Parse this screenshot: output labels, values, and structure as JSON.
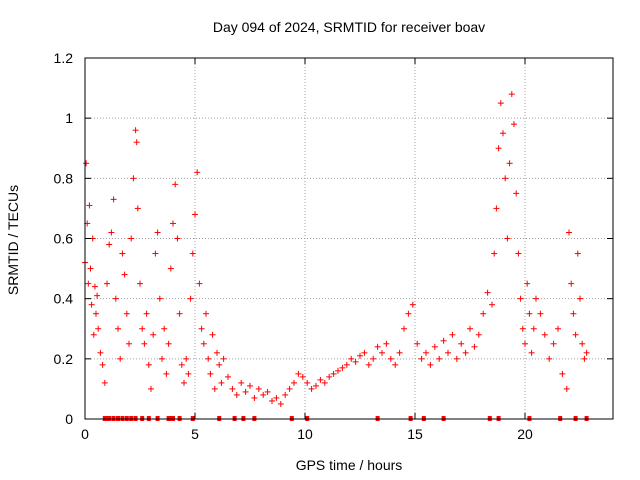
{
  "chart_data": {
    "type": "scatter",
    "title": "Day 094 of 2024, SRMTID for receiver boav",
    "xlabel": "GPS time / hours",
    "ylabel": "SRMTID / TECUs",
    "xlim": [
      0,
      24
    ],
    "ylim": [
      0,
      1.2
    ],
    "xticks": [
      0,
      5,
      10,
      15,
      20
    ],
    "xtick_labels": [
      "0",
      "5",
      "10",
      "15",
      "20"
    ],
    "yticks": [
      0,
      0.2,
      0.4,
      0.6,
      0.8,
      1.0,
      1.2
    ],
    "ytick_labels": [
      "0",
      "0.2",
      "0.4",
      "0.6",
      "0.8",
      "1",
      "1.2"
    ],
    "grid": true,
    "marker": "+",
    "color": "#ff0000",
    "series": [
      {
        "name": "SRMTID",
        "x": [
          0.0,
          0.05,
          0.1,
          0.15,
          0.2,
          0.25,
          0.3,
          0.35,
          0.4,
          0.45,
          0.5,
          0.55,
          0.6,
          0.7,
          0.8,
          0.9,
          1.0,
          1.1,
          1.2,
          1.3,
          1.4,
          1.5,
          1.6,
          1.7,
          1.8,
          1.9,
          2.0,
          2.1,
          2.2,
          2.3,
          2.35,
          2.4,
          2.5,
          2.6,
          2.7,
          2.8,
          2.9,
          3.0,
          3.1,
          3.2,
          3.3,
          3.4,
          3.5,
          3.6,
          3.7,
          3.8,
          3.9,
          4.0,
          4.1,
          4.2,
          4.3,
          4.4,
          4.5,
          4.6,
          4.7,
          4.8,
          4.9,
          5.0,
          5.1,
          5.2,
          5.3,
          5.4,
          5.5,
          5.6,
          5.7,
          5.8,
          5.9,
          6.0,
          6.1,
          6.2,
          6.3,
          6.5,
          6.7,
          6.9,
          7.1,
          7.3,
          7.5,
          7.7,
          7.9,
          8.1,
          8.3,
          8.5,
          8.7,
          8.9,
          9.1,
          9.3,
          9.5,
          9.7,
          9.9,
          10.1,
          10.3,
          10.5,
          10.7,
          10.9,
          11.1,
          11.3,
          11.5,
          11.7,
          11.9,
          12.1,
          12.3,
          12.5,
          12.7,
          12.9,
          13.1,
          13.3,
          13.5,
          13.7,
          13.9,
          14.1,
          14.3,
          14.5,
          14.7,
          14.9,
          15.1,
          15.3,
          15.5,
          15.7,
          15.9,
          16.1,
          16.3,
          16.5,
          16.7,
          16.9,
          17.1,
          17.3,
          17.5,
          17.7,
          17.9,
          18.1,
          18.3,
          18.5,
          18.6,
          18.7,
          18.8,
          18.9,
          19.0,
          19.1,
          19.2,
          19.3,
          19.4,
          19.5,
          19.6,
          19.7,
          19.8,
          19.9,
          20.0,
          20.1,
          20.2,
          20.3,
          20.4,
          20.5,
          20.7,
          20.9,
          21.1,
          21.3,
          21.5,
          21.7,
          21.9,
          22.0,
          22.1,
          22.2,
          22.3,
          22.4,
          22.5,
          22.6,
          22.7,
          22.8
        ],
        "y": [
          0.52,
          0.85,
          0.65,
          0.45,
          0.71,
          0.5,
          0.38,
          0.6,
          0.28,
          0.44,
          0.35,
          0.41,
          0.3,
          0.22,
          0.18,
          0.12,
          0.45,
          0.58,
          0.62,
          0.73,
          0.4,
          0.3,
          0.2,
          0.55,
          0.48,
          0.35,
          0.25,
          0.6,
          0.8,
          0.96,
          0.92,
          0.7,
          0.45,
          0.3,
          0.25,
          0.35,
          0.18,
          0.1,
          0.28,
          0.55,
          0.62,
          0.4,
          0.2,
          0.3,
          0.15,
          0.25,
          0.5,
          0.65,
          0.78,
          0.6,
          0.35,
          0.18,
          0.12,
          0.2,
          0.15,
          0.4,
          0.55,
          0.68,
          0.82,
          0.45,
          0.3,
          0.25,
          0.35,
          0.2,
          0.15,
          0.28,
          0.1,
          0.22,
          0.18,
          0.12,
          0.2,
          0.14,
          0.1,
          0.08,
          0.12,
          0.09,
          0.11,
          0.07,
          0.1,
          0.08,
          0.09,
          0.06,
          0.07,
          0.05,
          0.08,
          0.1,
          0.12,
          0.15,
          0.14,
          0.12,
          0.1,
          0.11,
          0.13,
          0.12,
          0.14,
          0.15,
          0.16,
          0.17,
          0.18,
          0.2,
          0.19,
          0.21,
          0.22,
          0.18,
          0.2,
          0.24,
          0.22,
          0.25,
          0.2,
          0.18,
          0.22,
          0.3,
          0.35,
          0.38,
          0.25,
          0.2,
          0.22,
          0.18,
          0.24,
          0.2,
          0.26,
          0.22,
          0.28,
          0.2,
          0.25,
          0.22,
          0.3,
          0.24,
          0.28,
          0.35,
          0.42,
          0.38,
          0.55,
          0.7,
          0.9,
          1.05,
          0.95,
          0.8,
          0.6,
          0.85,
          1.08,
          0.98,
          0.75,
          0.55,
          0.4,
          0.3,
          0.25,
          0.45,
          0.35,
          0.22,
          0.3,
          0.4,
          0.35,
          0.28,
          0.2,
          0.25,
          0.3,
          0.15,
          0.1,
          0.62,
          0.45,
          0.35,
          0.28,
          0.55,
          0.4,
          0.25,
          0.2,
          0.22
        ]
      }
    ],
    "zero_x": [
      0.9,
      1.0,
      1.1,
      1.3,
      1.5,
      1.7,
      1.9,
      2.1,
      2.3,
      2.6,
      2.9,
      3.3,
      3.8,
      3.9,
      4.0,
      4.3,
      4.9,
      6.1,
      6.8,
      7.2,
      7.7,
      9.4,
      10.1,
      13.3,
      14.8,
      15.4,
      16.3,
      18.4,
      18.8,
      20.2,
      21.6,
      22.3,
      22.8
    ]
  }
}
